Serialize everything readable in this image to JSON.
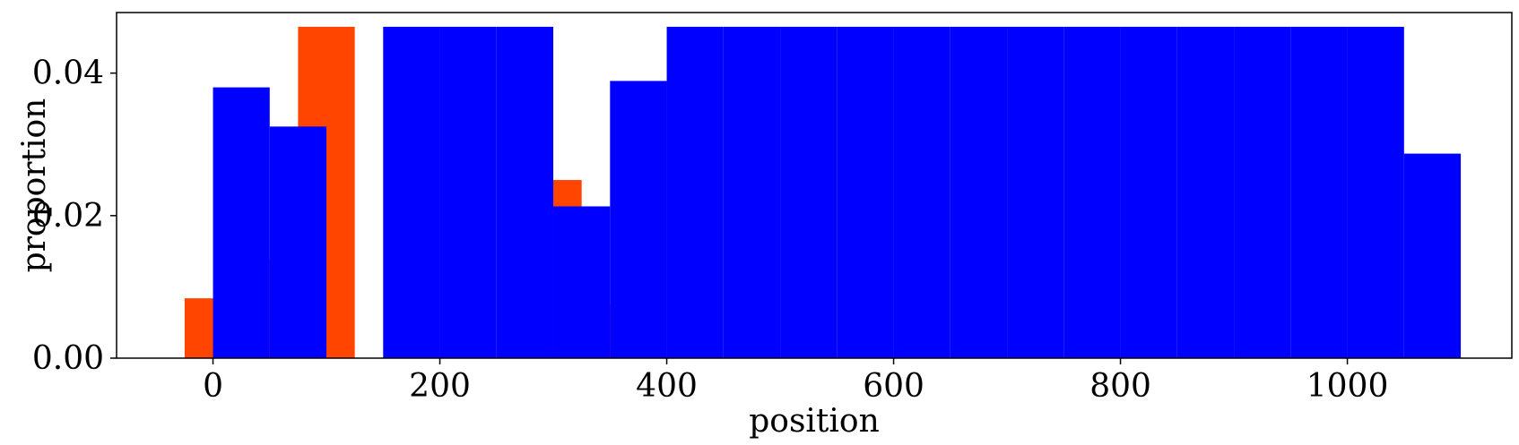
{
  "chart_data": {
    "type": "bar",
    "title": "",
    "xlabel": "position",
    "ylabel": "proportion",
    "xlim": [
      -85,
      1145
    ],
    "ylim": [
      0,
      0.0485
    ],
    "bar_width": 50,
    "xticks": [
      0,
      200,
      400,
      600,
      800,
      1000
    ],
    "xtick_labels": [
      "0",
      "200",
      "400",
      "600",
      "800",
      "1000"
    ],
    "yticks": [
      0,
      0.02,
      0.04
    ],
    "ytick_labels": [
      "0.00",
      "0.02",
      "0.04"
    ],
    "grid": false,
    "legend": "none",
    "series": [
      {
        "color": "#ff4500",
        "points": [
          {
            "x": 0,
            "y": 0.0084
          },
          {
            "x": 50,
            "y": 0.0139
          },
          {
            "x": 100,
            "y": 0.0465
          },
          {
            "x": 300,
            "y": 0.025
          },
          {
            "x": 350,
            "y": 0.0075
          }
        ]
      },
      {
        "color": "#0000ff",
        "points": [
          {
            "x": 25,
            "y": 0.038
          },
          {
            "x": 75,
            "y": 0.0325
          },
          {
            "x": 175,
            "y": 0.0465
          },
          {
            "x": 225,
            "y": 0.0465
          },
          {
            "x": 275,
            "y": 0.0465
          },
          {
            "x": 325,
            "y": 0.0213
          },
          {
            "x": 375,
            "y": 0.0389
          },
          {
            "x": 425,
            "y": 0.0465
          },
          {
            "x": 475,
            "y": 0.0465
          },
          {
            "x": 525,
            "y": 0.0465
          },
          {
            "x": 575,
            "y": 0.0465
          },
          {
            "x": 625,
            "y": 0.0465
          },
          {
            "x": 675,
            "y": 0.0465
          },
          {
            "x": 725,
            "y": 0.0465
          },
          {
            "x": 775,
            "y": 0.0465
          },
          {
            "x": 825,
            "y": 0.0465
          },
          {
            "x": 875,
            "y": 0.0465
          },
          {
            "x": 925,
            "y": 0.0465
          },
          {
            "x": 975,
            "y": 0.0465
          },
          {
            "x": 1025,
            "y": 0.0465
          },
          {
            "x": 1075,
            "y": 0.0287
          }
        ]
      }
    ]
  }
}
